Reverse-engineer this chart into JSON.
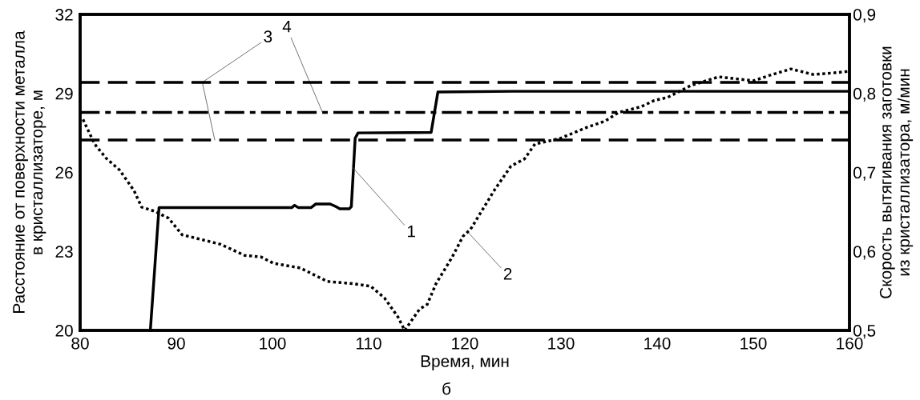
{
  "chart_data": {
    "type": "line",
    "xlabel": "Время, мин",
    "ylabel": "Расстояние от поверхности металла\nв кристаллизаторе, м",
    "y2label": "Скорость вытягивания заготовки\nиз кристаллизатора, м/мин",
    "xlim": [
      80,
      160
    ],
    "xticks": [
      80,
      90,
      100,
      110,
      120,
      130,
      140,
      150,
      160
    ],
    "ylim": [
      20,
      32
    ],
    "yticks": [
      20,
      23,
      26,
      29,
      32
    ],
    "y2lim": [
      0.5,
      0.9
    ],
    "y2ticks": [
      {
        "value": 0.5,
        "label": "0,5"
      },
      {
        "value": 0.6,
        "label": "0,6"
      },
      {
        "value": 0.7,
        "label": "0,7"
      },
      {
        "value": 0.8,
        "label": "0,8"
      },
      {
        "value": 0.9,
        "label": "0,9"
      }
    ],
    "grid": false,
    "legend": false,
    "series": [
      {
        "color": "#000000",
        "line_style": "solid",
        "x": [
          87.3,
          88.2,
          95,
          102,
          102.3,
          102.7,
          104,
          104.5,
          106,
          106.6,
          107,
          108,
          108.2,
          108.6,
          108.9,
          116.5,
          117.2,
          125,
          160
        ],
        "values": [
          20,
          24.66,
          24.66,
          24.66,
          24.75,
          24.66,
          24.66,
          24.8,
          24.8,
          24.7,
          24.62,
          24.62,
          24.7,
          27.3,
          27.5,
          27.52,
          29.05,
          29.08,
          29.08
        ]
      },
      {
        "color": "#000000",
        "line_style": "dotted",
        "axis": "y2",
        "x": [
          80.3,
          81.5,
          82.7,
          84.1,
          85.6,
          86.4,
          87.7,
          89.2,
          90.6,
          92.3,
          94.6,
          97.1,
          98.8,
          100.1,
          102.9,
          105.7,
          108.5,
          110.2,
          111.65,
          113.05,
          113.75,
          115.3,
          116.1,
          117.0,
          118.7,
          119.8,
          120.6,
          122.0,
          123.1,
          124.8,
          126.2,
          127.3,
          129.9,
          132.7,
          134.6,
          136.0,
          138.3,
          139.7,
          141.1,
          143.5,
          146.4,
          150.0,
          152.0,
          153.9,
          156.2,
          158.4,
          160
        ],
        "values": [
          0.767,
          0.736,
          0.718,
          0.703,
          0.677,
          0.656,
          0.651,
          0.642,
          0.621,
          0.616,
          0.609,
          0.595,
          0.593,
          0.585,
          0.579,
          0.562,
          0.559,
          0.556,
          0.541,
          0.517,
          0.5,
          0.527,
          0.533,
          0.559,
          0.593,
          0.619,
          0.628,
          0.656,
          0.678,
          0.708,
          0.717,
          0.736,
          0.743,
          0.757,
          0.765,
          0.776,
          0.783,
          0.791,
          0.795,
          0.81,
          0.821,
          0.816,
          0.824,
          0.831,
          0.824,
          0.826,
          0.828
        ]
      }
    ],
    "ref_lines": [
      {
        "axis": "y2",
        "value": 0.814,
        "line_style": "dashed",
        "color": "#000000"
      },
      {
        "axis": "y2",
        "value": 0.776,
        "line_style": "dashdot",
        "color": "#000000"
      },
      {
        "axis": "y2",
        "value": 0.741,
        "line_style": "dashed",
        "color": "#000000"
      }
    ],
    "annotations": [
      {
        "text": "3",
        "x": 92.7,
        "y": 29.42
      },
      {
        "text": "4",
        "x": 105.2,
        "y": 28.28
      },
      {
        "text": "1",
        "x": 108.3,
        "y": 26.2
      },
      {
        "text": "2",
        "x": 120.3,
        "y": 23.74
      },
      "б"
    ]
  }
}
